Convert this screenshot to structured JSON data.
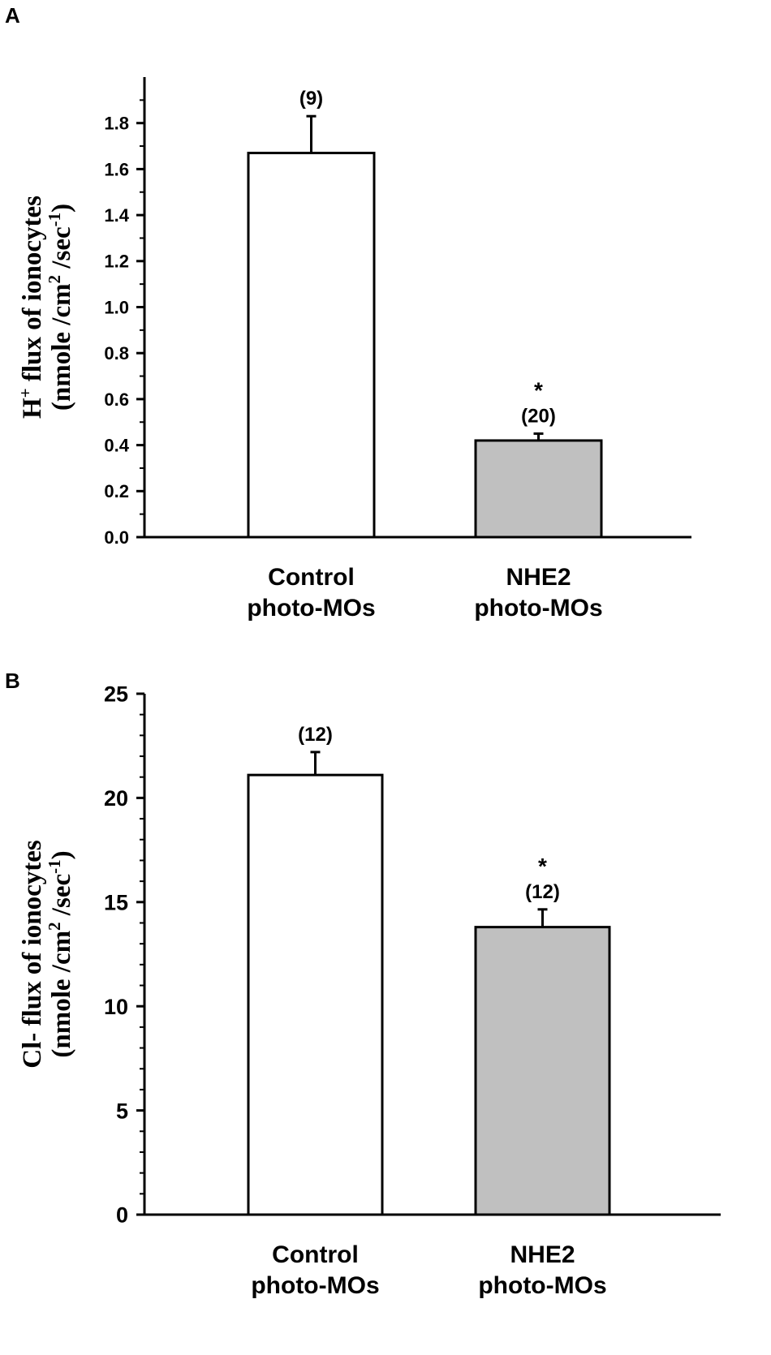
{
  "chart_data": [
    {
      "panel": "A",
      "type": "bar",
      "categories": [
        [
          "Control",
          "photo-MOs"
        ],
        [
          "NHE2",
          "photo-MOs"
        ]
      ],
      "values": [
        1.67,
        0.42
      ],
      "errors": [
        0.16,
        0.03
      ],
      "bar_colors": [
        "#ffffff",
        "#c0c0c0"
      ],
      "n_labels": [
        "(9)",
        "(20)"
      ],
      "significance": [
        "",
        "*"
      ],
      "ylabel_lines": [
        [
          {
            "t": "H"
          },
          {
            "t": "+",
            "sup": true
          },
          {
            "t": " flux of ionocytes"
          }
        ],
        [
          {
            "t": "(nmole /cm"
          },
          {
            "t": "2",
            "sup": true
          },
          {
            "t": " /sec"
          },
          {
            "t": "-1",
            "sup": true
          },
          {
            "t": ")"
          }
        ]
      ],
      "ylim": [
        0,
        2.0
      ],
      "yticks": [
        "0.0",
        "0.2",
        "0.4",
        "0.6",
        "0.8",
        "1.0",
        "1.2",
        "1.4",
        "1.6",
        "1.8"
      ],
      "grid": false
    },
    {
      "panel": "B",
      "type": "bar",
      "categories": [
        [
          "Control",
          "photo-MOs"
        ],
        [
          "NHE2",
          "photo-MOs"
        ]
      ],
      "values": [
        21.1,
        13.8
      ],
      "errors": [
        1.1,
        0.85
      ],
      "bar_colors": [
        "#ffffff",
        "#c0c0c0"
      ],
      "n_labels": [
        "(12)",
        "(12)"
      ],
      "significance": [
        "",
        "*"
      ],
      "ylabel_lines": [
        [
          {
            "t": "Cl- flux of ionocytes"
          }
        ],
        [
          {
            "t": "(nmole /cm"
          },
          {
            "t": "2",
            "sup": true
          },
          {
            "t": " /sec"
          },
          {
            "t": "-1",
            "sup": true
          },
          {
            "t": ")"
          }
        ]
      ],
      "ylim": [
        0,
        25
      ],
      "yticks": [
        "0",
        "5",
        "10",
        "15",
        "20",
        "25"
      ],
      "grid": false
    }
  ]
}
